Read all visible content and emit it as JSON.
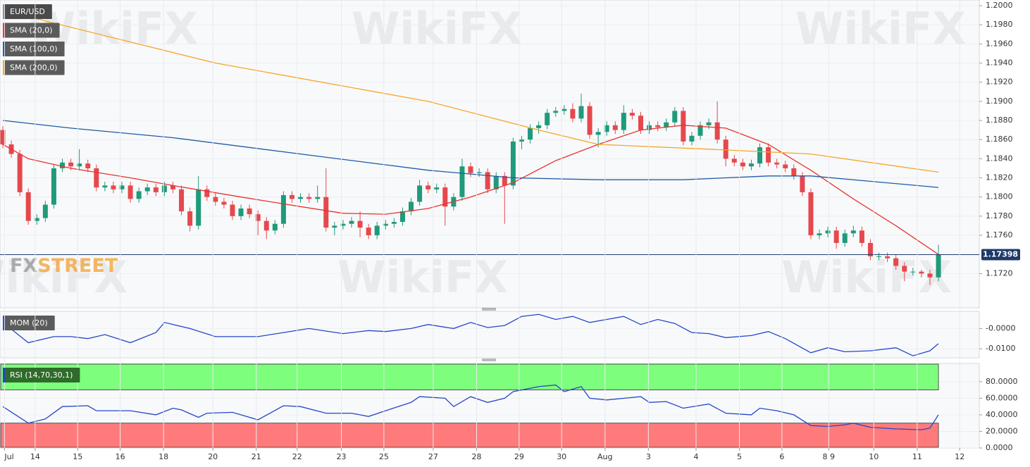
{
  "chart_data": [
    {
      "type": "candlestick",
      "title": "EUR/USD",
      "open": [
        1.187,
        1.1855,
        1.1845,
        1.1805,
        1.1775,
        1.1778,
        1.1792,
        1.183,
        1.1836,
        1.1832,
        1.1835,
        1.183,
        1.181,
        1.1812,
        1.1808,
        1.1812,
        1.1798,
        1.1806,
        1.181,
        1.1805,
        1.1812,
        1.1808,
        1.1785,
        1.177,
        1.1808,
        1.18,
        1.1795,
        1.1792,
        1.178,
        1.1788,
        1.1782,
        1.1775,
        1.1765,
        1.1772,
        1.1802,
        1.1798,
        1.18,
        1.1798,
        1.18,
        1.1768,
        1.177,
        1.1772,
        1.1775,
        1.1768,
        1.176,
        1.177,
        1.1772,
        1.1774,
        1.1785,
        1.1795,
        1.1812,
        1.1808,
        1.181,
        1.179,
        1.18,
        1.1832,
        1.1825,
        1.1826,
        1.1808,
        1.1822,
        1.1812,
        1.1858,
        1.186,
        1.1872,
        1.1875,
        1.1888,
        1.189,
        1.1892,
        1.1882,
        1.1895,
        1.1865,
        1.1868,
        1.1875,
        1.187,
        1.1888,
        1.1885,
        1.187,
        1.1875,
        1.1873,
        1.1878,
        1.189,
        1.1858,
        1.1864,
        1.1875,
        1.1878,
        1.186,
        1.184,
        1.1836,
        1.1832,
        1.1835,
        1.1852,
        1.1836,
        1.1834,
        1.183,
        1.1822,
        1.1805,
        1.176,
        1.1762,
        1.1765,
        1.1752,
        1.1762,
        1.1765,
        1.1752,
        1.1738,
        1.1738,
        1.1736,
        1.1728,
        1.1722,
        1.1722,
        1.172,
        1.1716
      ],
      "high": [
        1.1874,
        1.1859,
        1.1849,
        1.1809,
        1.1782,
        1.1796,
        1.1834,
        1.184,
        1.184,
        1.185,
        1.1839,
        1.1834,
        1.1816,
        1.1816,
        1.1816,
        1.1816,
        1.181,
        1.1814,
        1.1814,
        1.1816,
        1.1816,
        1.1812,
        1.1789,
        1.1822,
        1.1812,
        1.1804,
        1.1799,
        1.1796,
        1.1792,
        1.1792,
        1.1786,
        1.1779,
        1.1776,
        1.1806,
        1.1806,
        1.1804,
        1.1804,
        1.1812,
        1.183,
        1.1774,
        1.1776,
        1.1779,
        1.1785,
        1.1772,
        1.1774,
        1.1776,
        1.1778,
        1.1789,
        1.1799,
        1.1818,
        1.1816,
        1.1814,
        1.1814,
        1.1804,
        1.184,
        1.1836,
        1.183,
        1.183,
        1.1826,
        1.1826,
        1.1862,
        1.1864,
        1.1876,
        1.1879,
        1.1892,
        1.1894,
        1.1896,
        1.1898,
        1.1908,
        1.1899,
        1.1872,
        1.1879,
        1.1879,
        1.1896,
        1.1892,
        1.1889,
        1.1879,
        1.1879,
        1.1882,
        1.1894,
        1.1894,
        1.1868,
        1.1879,
        1.1882,
        1.19,
        1.1864,
        1.1844,
        1.184,
        1.1839,
        1.1856,
        1.1856,
        1.184,
        1.1838,
        1.1834,
        1.1826,
        1.1809,
        1.1766,
        1.1769,
        1.1769,
        1.1766,
        1.177,
        1.1769,
        1.1756,
        1.1742,
        1.1742,
        1.174,
        1.1732,
        1.1726,
        1.1724,
        1.1724,
        1.175
      ],
      "low": [
        1.1851,
        1.1841,
        1.1801,
        1.1771,
        1.1771,
        1.1774,
        1.1788,
        1.1826,
        1.1828,
        1.1828,
        1.1826,
        1.1806,
        1.1806,
        1.1804,
        1.1804,
        1.1794,
        1.1794,
        1.1802,
        1.1801,
        1.1801,
        1.1804,
        1.1781,
        1.1764,
        1.1766,
        1.1796,
        1.1791,
        1.1788,
        1.1776,
        1.1776,
        1.1778,
        1.176,
        1.1756,
        1.1761,
        1.1768,
        1.1794,
        1.1794,
        1.1794,
        1.1794,
        1.1764,
        1.176,
        1.1766,
        1.1768,
        1.1758,
        1.1756,
        1.1756,
        1.1766,
        1.1768,
        1.177,
        1.1781,
        1.1791,
        1.1804,
        1.1804,
        1.177,
        1.1786,
        1.1796,
        1.1821,
        1.1821,
        1.1804,
        1.1804,
        1.1772,
        1.1808,
        1.185,
        1.1856,
        1.1866,
        1.1871,
        1.1884,
        1.1886,
        1.1878,
        1.1878,
        1.1861,
        1.1852,
        1.1864,
        1.1866,
        1.1866,
        1.1881,
        1.1866,
        1.1866,
        1.1869,
        1.1869,
        1.1874,
        1.1854,
        1.1854,
        1.186,
        1.1871,
        1.1856,
        1.1832,
        1.1832,
        1.1828,
        1.1828,
        1.1831,
        1.1832,
        1.183,
        1.1826,
        1.1818,
        1.1801,
        1.1756,
        1.1756,
        1.1758,
        1.1746,
        1.1748,
        1.1758,
        1.1748,
        1.1734,
        1.1734,
        1.1732,
        1.1724,
        1.1712,
        1.1718,
        1.1716,
        1.1708,
        1.1712
      ],
      "close": [
        1.1855,
        1.1845,
        1.1805,
        1.1775,
        1.1778,
        1.1792,
        1.183,
        1.1836,
        1.1832,
        1.1835,
        1.183,
        1.181,
        1.1812,
        1.1808,
        1.1812,
        1.1798,
        1.1806,
        1.181,
        1.1805,
        1.1812,
        1.1808,
        1.1785,
        1.177,
        1.1808,
        1.18,
        1.1795,
        1.1792,
        1.178,
        1.1788,
        1.1782,
        1.1775,
        1.1765,
        1.1772,
        1.1802,
        1.1798,
        1.18,
        1.1798,
        1.18,
        1.1768,
        1.177,
        1.1772,
        1.1775,
        1.1768,
        1.176,
        1.177,
        1.1772,
        1.1774,
        1.1785,
        1.1795,
        1.1812,
        1.1808,
        1.181,
        1.179,
        1.18,
        1.1832,
        1.1825,
        1.1826,
        1.1808,
        1.1822,
        1.1812,
        1.1858,
        1.186,
        1.1872,
        1.1875,
        1.1888,
        1.189,
        1.1892,
        1.1882,
        1.1895,
        1.1865,
        1.1868,
        1.1875,
        1.187,
        1.1888,
        1.1885,
        1.187,
        1.1875,
        1.1873,
        1.1878,
        1.189,
        1.1858,
        1.1864,
        1.1875,
        1.1878,
        1.186,
        1.184,
        1.1836,
        1.1832,
        1.1835,
        1.1852,
        1.1836,
        1.1834,
        1.183,
        1.1822,
        1.1805,
        1.176,
        1.1762,
        1.1765,
        1.1752,
        1.1762,
        1.1765,
        1.1752,
        1.1738,
        1.1738,
        1.1736,
        1.1728,
        1.1722,
        1.1722,
        1.172,
        1.1716,
        1.174
      ],
      "up_color": "#1f9a7a",
      "down_color": "#e5484d",
      "series": [
        {
          "name": "SMA (20,0)",
          "color": "#e8332e",
          "x": [
            0,
            3,
            8,
            15,
            20,
            28,
            35,
            40,
            45,
            50,
            55,
            60,
            65,
            70,
            75,
            80,
            85,
            90,
            95,
            100,
            105,
            110
          ],
          "values": [
            1.1855,
            1.184,
            1.183,
            1.182,
            1.1812,
            1.18,
            1.179,
            1.1783,
            1.1782,
            1.1788,
            1.18,
            1.1815,
            1.1838,
            1.1855,
            1.187,
            1.1875,
            1.1872,
            1.1855,
            1.1828,
            1.1798,
            1.177,
            1.174
          ]
        },
        {
          "name": "SMA (100,0)",
          "color": "#1f5aa6",
          "x": [
            0,
            8,
            20,
            35,
            50,
            60,
            70,
            80,
            90,
            95,
            110
          ],
          "values": [
            1.188,
            1.1872,
            1.1862,
            1.1845,
            1.1828,
            1.182,
            1.1818,
            1.1818,
            1.1822,
            1.1822,
            1.181
          ]
        },
        {
          "name": "SMA (200,0)",
          "color": "#f5a623",
          "x": [
            0,
            25,
            50,
            63,
            70,
            83,
            95,
            110
          ],
          "values": [
            1.1995,
            1.194,
            1.19,
            1.187,
            1.1855,
            1.185,
            1.1845,
            1.1826
          ]
        }
      ],
      "last_price": 1.17398,
      "last_price_color": "#1f3a68",
      "xlim": [
        -0.33,
        114.8
      ],
      "ylim": [
        1.16842,
        1.20059
      ],
      "yticks": [
        {
          "value": 1.2,
          "label": "1.2000"
        },
        {
          "value": 1.198,
          "label": "1.1980"
        },
        {
          "value": 1.196,
          "label": "1.1960"
        },
        {
          "value": 1.194,
          "label": "1.1940"
        },
        {
          "value": 1.192,
          "label": "1.1920"
        },
        {
          "value": 1.19,
          "label": "1.1900"
        },
        {
          "value": 1.188,
          "label": "1.1880"
        },
        {
          "value": 1.186,
          "label": "1.1860"
        },
        {
          "value": 1.184,
          "label": "1.1840"
        },
        {
          "value": 1.182,
          "label": "1.1820"
        },
        {
          "value": 1.18,
          "label": "1.1800"
        },
        {
          "value": 1.178,
          "label": "1.1780"
        },
        {
          "value": 1.176,
          "label": "1.1760"
        },
        {
          "value": 1.172,
          "label": "1.1720"
        }
      ],
      "grid": true,
      "watermark": "WikiFX",
      "logo": [
        "FX",
        "STREET"
      ]
    },
    {
      "type": "line",
      "legend_color": "#5b5b5b",
      "series": [
        {
          "name": "MOM (20)",
          "color": "#2447c9",
          "x": [
            0,
            3,
            6,
            8,
            10,
            12,
            15,
            18,
            19,
            22,
            25,
            30,
            33,
            36,
            40,
            43,
            45,
            48,
            50,
            53,
            55,
            57,
            59,
            61,
            63,
            65,
            67,
            69,
            71,
            73,
            75,
            77,
            79,
            81,
            83,
            85,
            88,
            90,
            92,
            95,
            97,
            99,
            102,
            105,
            107,
            109,
            110
          ],
          "values": [
            0.003,
            -0.007,
            -0.004,
            -0.004,
            -0.005,
            -0.003,
            -0.007,
            -0.002,
            0.003,
            0.0,
            -0.004,
            -0.004,
            -0.002,
            0.0,
            -0.0025,
            -0.001,
            -0.0015,
            0.0,
            0.002,
            0.0,
            0.003,
            0.0005,
            0.0015,
            0.006,
            0.007,
            0.0045,
            0.006,
            0.003,
            0.0045,
            0.006,
            0.002,
            0.0045,
            0.0025,
            -0.002,
            -0.0025,
            -0.0045,
            -0.0035,
            -0.0015,
            -0.005,
            -0.012,
            -0.0095,
            -0.0115,
            -0.011,
            -0.0095,
            -0.0135,
            -0.011,
            -0.0075
          ]
        }
      ],
      "xlim": [
        -0.33,
        114.8
      ],
      "ylim": [
        -0.0145,
        0.0085
      ],
      "yticks": [
        {
          "value": 0,
          "label": "-0.0000"
        },
        {
          "value": -0.01,
          "label": "-0.0100"
        }
      ],
      "grid": true
    },
    {
      "type": "line",
      "legend_color": "#2f6b2a",
      "series": [
        {
          "name": "RSI (14,70,30,1)",
          "color": "#2447c9",
          "x": [
            0,
            3,
            5,
            7,
            10,
            11,
            15,
            18,
            20,
            21,
            23,
            24,
            27,
            30,
            33,
            35,
            38,
            41,
            43,
            45,
            48,
            49,
            52,
            53,
            55,
            57,
            59,
            60,
            63,
            65,
            66,
            68,
            69,
            71,
            75,
            76,
            78,
            80,
            83,
            85,
            88,
            89,
            91,
            93,
            95,
            97,
            99,
            100,
            102,
            105,
            108,
            109,
            110
          ],
          "values": [
            50,
            30,
            35,
            50,
            51,
            45,
            45,
            40,
            48,
            46,
            37,
            42,
            43,
            34,
            51,
            50,
            42,
            42,
            38,
            45,
            55,
            62,
            60,
            50,
            62,
            55,
            60,
            68,
            74,
            76,
            68,
            74,
            60,
            58,
            62,
            55,
            56,
            48,
            53,
            42,
            40,
            48,
            45,
            40,
            27,
            26,
            28,
            30,
            25,
            23,
            22,
            24,
            40
          ]
        }
      ],
      "overbought": 70,
      "oversold": 30,
      "overbought_color": "#7dff7d",
      "oversold_color": "#ff7b7b",
      "xlim": [
        -0.33,
        114.8
      ],
      "ylim": [
        0,
        102
      ],
      "yticks": [
        {
          "value": 80,
          "label": "80.0000"
        },
        {
          "value": 60,
          "label": "60.0000"
        },
        {
          "value": 40,
          "label": "40.0000"
        },
        {
          "value": 20,
          "label": "20.0000"
        },
        {
          "value": 0,
          "label": "0.0000"
        }
      ],
      "xticks": [
        {
          "value": 0.2,
          "label": "Jul"
        },
        {
          "value": 3.8,
          "label": "14"
        },
        {
          "value": 8.8,
          "label": "15"
        },
        {
          "value": 13.8,
          "label": "16"
        },
        {
          "value": 18.9,
          "label": "18"
        },
        {
          "value": 24.7,
          "label": "20"
        },
        {
          "value": 29.8,
          "label": "21"
        },
        {
          "value": 34.6,
          "label": "22"
        },
        {
          "value": 39.8,
          "label": "23"
        },
        {
          "value": 44.8,
          "label": "25"
        },
        {
          "value": 50.6,
          "label": "27"
        },
        {
          "value": 55.7,
          "label": "28"
        },
        {
          "value": 60.7,
          "label": "29"
        },
        {
          "value": 65.7,
          "label": "30"
        },
        {
          "value": 70.8,
          "label": "Aug"
        },
        {
          "value": 75.9,
          "label": "3"
        },
        {
          "value": 81.5,
          "label": "4"
        },
        {
          "value": 86.6,
          "label": "5"
        },
        {
          "value": 91.6,
          "label": "6"
        },
        {
          "value": 97.1,
          "label": "8 9"
        },
        {
          "value": 102.4,
          "label": "10"
        },
        {
          "value": 107.5,
          "label": "11"
        },
        {
          "value": 112.5,
          "label": "12"
        }
      ],
      "grid": true
    }
  ]
}
